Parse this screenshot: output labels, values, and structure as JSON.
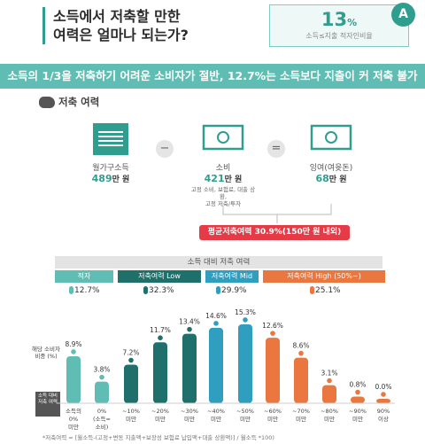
{
  "question": {
    "line1": "소득에서 저축할 만한",
    "line2": "여력은 얼마나 되는가?"
  },
  "answer": {
    "value": "13",
    "unit": "%",
    "label": "소득≤지출 적자인비율",
    "badge": "A"
  },
  "banner": "소득의 1/3을 저축하기 어려운 소비자가 절반, 12.7%는 소득보다 지출이 커 저축 불가",
  "section_label": "저축 여력",
  "equation": {
    "income": {
      "label": "월가구소득",
      "value": "489",
      "unit": "만 원"
    },
    "minus": "−",
    "spending": {
      "label": "소비",
      "value": "421",
      "unit": "만 원",
      "note1": "고정 소비, 보험료, 대출 상환,",
      "note2": "고정 저축/투자"
    },
    "equals": "=",
    "surplus": {
      "label": "잉여(여윳돈)",
      "value": "68",
      "unit": "만 원"
    }
  },
  "average_badge": "평균저축여력 30.9%(150만 원 내외)",
  "chart_title": "소득 대비 저축 여력",
  "groups": [
    {
      "label": "적자",
      "pct": "12.7",
      "color": "#5fbdb3"
    },
    {
      "label": "저축여력 Low",
      "pct": "32.3",
      "color": "#1f6f6a"
    },
    {
      "label": "저축여력 Mid",
      "pct": "29.9",
      "color": "#2f9ebf"
    },
    {
      "label": "저축여력 High (50%~)",
      "pct": "25.1",
      "color": "#e9773f"
    }
  ],
  "y_label": "해당 소비자 비중 (%)",
  "rate_box": "소득 대비 저축 여력",
  "footnote": "*저축여력 = [월소득-(고정+변동 지출액+보장성 보험료 납입액+대출 상환액)] / 월소득 *100)",
  "colors": {
    "teal_light": "#5fbdb3",
    "teal_dark": "#1f6f6a",
    "blue": "#2f9ebf",
    "orange": "#e9773f",
    "red": "#e63b47"
  },
  "chart_data": {
    "type": "bar",
    "title": "소득 대비 저축 여력",
    "ylabel": "해당 소비자 비중 (%)",
    "categories": [
      [
        "소득의",
        "0%",
        "미만"
      ],
      [
        "0%",
        "(소득=",
        "소비)"
      ],
      [
        "~10%",
        "미만"
      ],
      [
        "~20%",
        "미만"
      ],
      [
        "~30%",
        "미만"
      ],
      [
        "~40%",
        "미만"
      ],
      [
        "~50%",
        "미만"
      ],
      [
        "~60%",
        "미만"
      ],
      [
        "~70%",
        "미만"
      ],
      [
        "~80%",
        "미만"
      ],
      [
        "~90%",
        "미만"
      ],
      [
        "90%",
        "이상"
      ]
    ],
    "values": [
      8.9,
      3.8,
      7.2,
      11.7,
      13.4,
      14.6,
      15.3,
      12.6,
      8.6,
      3.1,
      0.8,
      0.0
    ],
    "value_labels": [
      "8.9%",
      "3.8%",
      "7.2%",
      "11.7%",
      "13.4%",
      "14.6%",
      "15.3%",
      "12.6%",
      "8.6%",
      "3.1%",
      "0.8%",
      "0.0%"
    ],
    "bar_group": [
      0,
      0,
      1,
      1,
      1,
      2,
      2,
      3,
      3,
      3,
      3,
      3
    ],
    "ylim": [
      0,
      16
    ]
  }
}
